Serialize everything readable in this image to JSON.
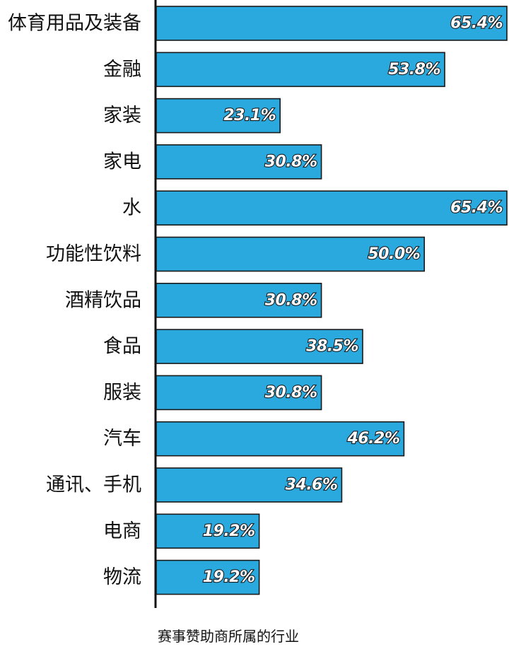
{
  "chart_data": {
    "type": "bar",
    "orientation": "horizontal",
    "categories": [
      "体育用品及装备",
      "金融",
      "家装",
      "家电",
      "水",
      "功能性饮料",
      "酒精饮品",
      "食品",
      "服装",
      "汽车",
      "通讯、手机",
      "电商",
      "物流"
    ],
    "values": [
      65.4,
      53.8,
      23.1,
      30.8,
      65.4,
      50.0,
      30.8,
      38.5,
      30.8,
      46.2,
      34.6,
      19.2,
      19.2
    ],
    "value_labels": [
      "65.4%",
      "53.8%",
      "23.1%",
      "30.8%",
      "65.4%",
      "50.0%",
      "30.8%",
      "38.5%",
      "30.8%",
      "46.2%",
      "34.6%",
      "19.2%",
      "19.2%"
    ],
    "xlabel": "赛事赞助商所属的行业",
    "xlim": [
      0,
      65.4
    ],
    "grid": false,
    "bar_color": "#2aa9df"
  }
}
